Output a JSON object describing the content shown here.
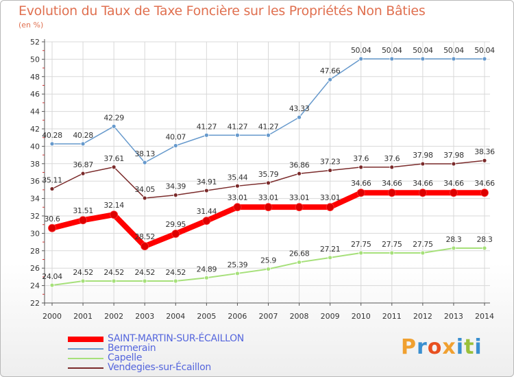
{
  "title": "Evolution du Taux de Taxe Foncière sur les Propriétés Non Bâties",
  "subtitle": "(en %)",
  "logo": {
    "text": "Proxiti",
    "colors": [
      "#f0a030",
      "#3a8fd0",
      "#e85020",
      "#f0a030",
      "#3a8fd0",
      "#9ac03a",
      "#3a8fd0"
    ]
  },
  "chart_data": {
    "type": "line",
    "x": [
      2000,
      2001,
      2002,
      2003,
      2004,
      2005,
      2006,
      2007,
      2008,
      2009,
      2010,
      2011,
      2012,
      2013,
      2014
    ],
    "ylim": [
      22,
      52
    ],
    "yticks": [
      22,
      24,
      26,
      28,
      30,
      32,
      34,
      36,
      38,
      40,
      42,
      44,
      46,
      48,
      50,
      52
    ],
    "grid": true,
    "legend_position": "bottom-left",
    "series": [
      {
        "name": "SAINT-MARTIN-SUR-ÉCAILLON",
        "color": "#ff0000",
        "stroke_width": 8,
        "values": [
          30.6,
          31.51,
          32.14,
          28.52,
          29.95,
          31.44,
          33.01,
          33.01,
          33.01,
          33.01,
          34.66,
          34.66,
          34.66,
          34.66,
          34.66
        ],
        "labels": [
          "30.6",
          "31.51",
          "32.14",
          "28.52",
          "29.95",
          "31.44",
          "33.01",
          "33.01",
          "33.01",
          "33.01",
          "34.66",
          "34.66",
          "34.66",
          "34.66",
          "34.66"
        ]
      },
      {
        "name": "Bermerain",
        "color": "#6699cc",
        "stroke_width": 1.5,
        "values": [
          40.28,
          40.28,
          42.29,
          38.13,
          40.07,
          41.27,
          41.27,
          41.27,
          43.33,
          47.66,
          50.04,
          50.04,
          50.04,
          50.04,
          50.04
        ],
        "labels": [
          "40.28",
          "40.28",
          "42.29",
          "38.13",
          "40.07",
          "41.27",
          "41.27",
          "41.27",
          "43.33",
          "47.66",
          "50.04",
          "50.04",
          "50.04",
          "50.04",
          "50.04"
        ]
      },
      {
        "name": "Capelle",
        "color": "#a6e07a",
        "stroke_width": 2,
        "values": [
          24.04,
          24.52,
          24.52,
          24.52,
          24.52,
          24.89,
          25.39,
          25.9,
          26.68,
          27.21,
          27.75,
          27.75,
          27.75,
          28.3,
          28.3
        ],
        "labels": [
          "24.04",
          "24.52",
          "24.52",
          "24.52",
          "24.52",
          "24.89",
          "25.39",
          "25.9",
          "26.68",
          "27.21",
          "27.75",
          "27.75",
          "27.75",
          "28.3",
          "28.3"
        ]
      },
      {
        "name": "Vendegies-sur-Écaillon",
        "color": "#7a2a2a",
        "stroke_width": 1.5,
        "values": [
          35.11,
          36.87,
          37.61,
          34.05,
          34.39,
          34.91,
          35.44,
          35.79,
          36.86,
          37.23,
          37.6,
          37.6,
          37.98,
          37.98,
          38.36
        ],
        "labels": [
          "35.11",
          "36.87",
          "37.61",
          "34.05",
          "34.39",
          "34.91",
          "35.44",
          "35.79",
          "36.86",
          "37.23",
          "37.6",
          "37.6",
          "37.98",
          "37.98",
          "38.36"
        ]
      }
    ]
  }
}
